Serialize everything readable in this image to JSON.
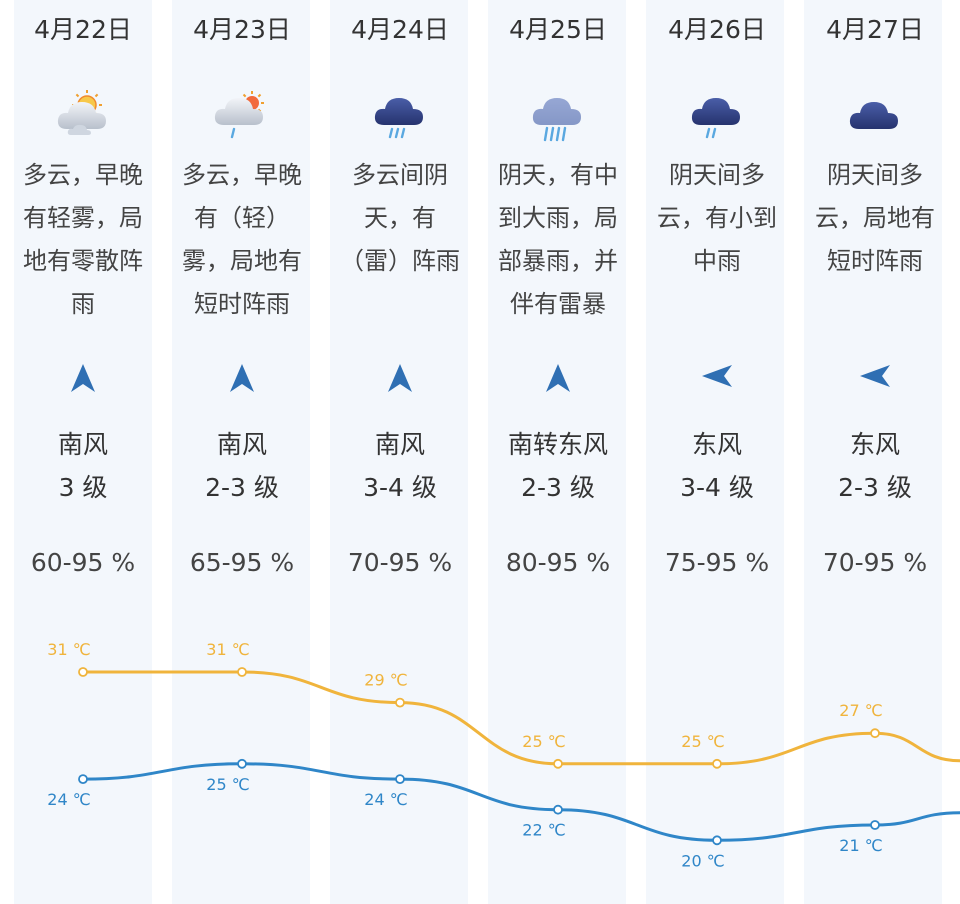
{
  "days": [
    {
      "date": "4月22日",
      "icon": "partly-cloudy-sun-fog-icon",
      "desc": [
        "多云，早晚",
        "有轻雾，局",
        "地有零散阵",
        "雨"
      ],
      "wind_dir": "南风",
      "wind_level": "3 级",
      "wind_arrow": "up",
      "humidity": "60-95 %",
      "high": "31 ℃",
      "low": "24 ℃",
      "high_val": 31,
      "low_val": 24
    },
    {
      "date": "4月23日",
      "icon": "cloud-sun-drizzle-icon",
      "desc": [
        "多云，早晚",
        "有（轻）",
        "雾，局地有",
        "短时阵雨"
      ],
      "wind_dir": "南风",
      "wind_level": "2-3 级",
      "wind_arrow": "up",
      "humidity": "65-95 %",
      "high": "31 ℃",
      "low": "25 ℃",
      "high_val": 31,
      "low_val": 25
    },
    {
      "date": "4月24日",
      "icon": "thunder-rain-cloud-icon",
      "desc": [
        "多云间阴",
        "天，有",
        "（雷）阵雨"
      ],
      "wind_dir": "南风",
      "wind_level": "3-4 级",
      "wind_arrow": "up",
      "humidity": "70-95 %",
      "high": "29 ℃",
      "low": "24 ℃",
      "high_val": 29,
      "low_val": 24
    },
    {
      "date": "4月25日",
      "icon": "heavy-rain-cloud-icon",
      "desc": [
        "阴天，有中",
        "到大雨，局",
        "部暴雨，并",
        "伴有雷暴"
      ],
      "wind_dir": "南转东风",
      "wind_level": "2-3 级",
      "wind_arrow": "up",
      "humidity": "80-95 %",
      "high": "25 ℃",
      "low": "22 ℃",
      "high_val": 25,
      "low_val": 22
    },
    {
      "date": "4月26日",
      "icon": "rain-cloud-icon",
      "desc": [
        "阴天间多",
        "云，有小到",
        "中雨"
      ],
      "wind_dir": "东风",
      "wind_level": "3-4 级",
      "wind_arrow": "left",
      "humidity": "75-95 %",
      "high": "25 ℃",
      "low": "20 ℃",
      "high_val": 25,
      "low_val": 20
    },
    {
      "date": "4月27日",
      "icon": "overcast-cloud-icon",
      "desc": [
        "阴天间多",
        "云，局地有",
        "短时阵雨"
      ],
      "wind_dir": "东风",
      "wind_level": "2-3 级",
      "wind_arrow": "left",
      "humidity": "70-95 %",
      "high": "27 ℃",
      "low": "21 ℃",
      "high_val": 27,
      "low_val": 21
    }
  ],
  "colors": {
    "high": "#f0b43c",
    "low": "#2f86c8",
    "arrow": "#2f6fb3",
    "column_bg": "#f3f7fc"
  }
}
